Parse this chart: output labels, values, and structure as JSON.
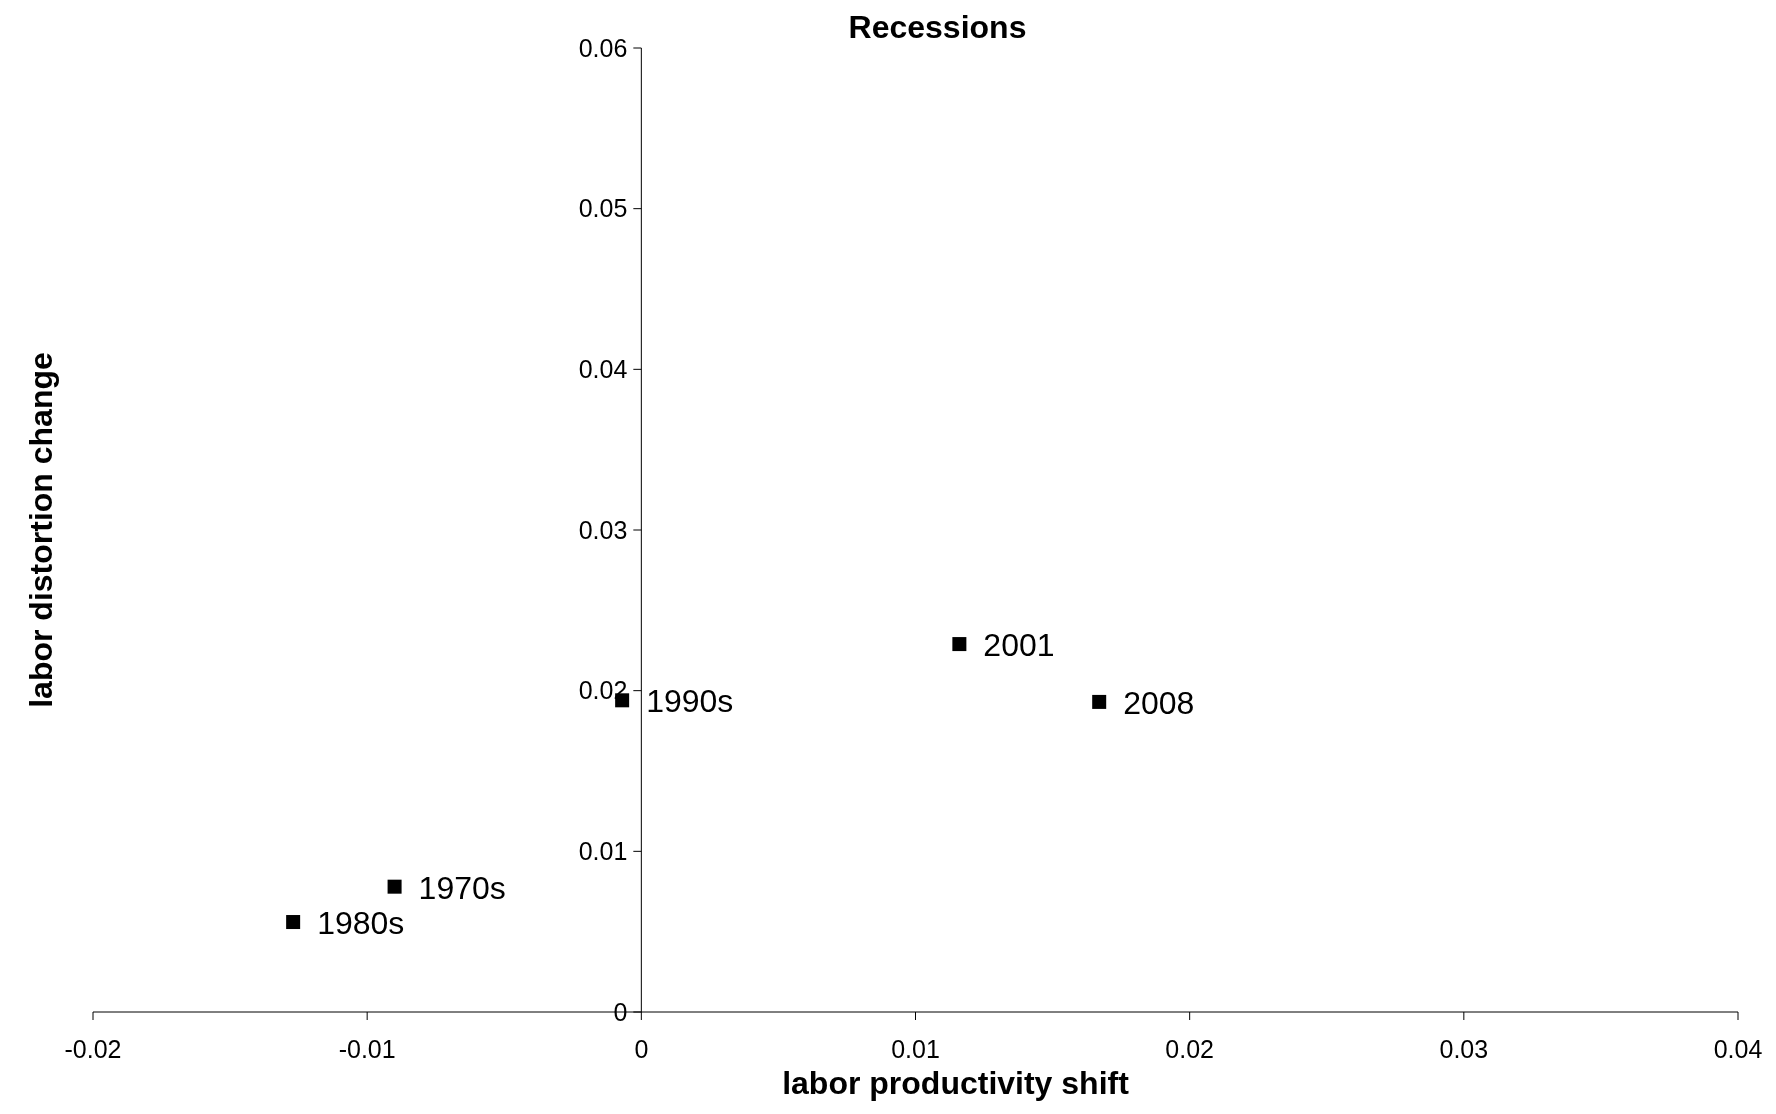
{
  "chart_data": {
    "type": "scatter",
    "title": "Recessions",
    "xlabel": "labor productivity shift",
    "ylabel": "labor distortion change",
    "xlim": [
      -0.02,
      0.04
    ],
    "xticks": [
      -0.02,
      -0.01,
      0,
      0.01,
      0.02,
      0.03,
      0.04
    ],
    "ylim": [
      0,
      0.06
    ],
    "yticks": [
      0,
      0.01,
      0.02,
      0.03,
      0.04,
      0.05,
      0.06
    ],
    "grid": false,
    "marker": "square",
    "annotations": [
      {
        "text": "1970s",
        "x": -0.009,
        "y": 0.0078
      },
      {
        "text": "1980s",
        "x": -0.0127,
        "y": 0.0056
      },
      {
        "text": "1990s",
        "x": -0.0007,
        "y": 0.0194
      },
      {
        "text": "2001",
        "x": 0.0116,
        "y": 0.0229
      },
      {
        "text": "2008",
        "x": 0.0167,
        "y": 0.0193
      }
    ],
    "series": [
      {
        "color": "#000000",
        "x": [
          -0.009,
          -0.0127,
          -0.0007,
          0.0116,
          0.0167
        ],
        "values": [
          0.0078,
          0.0056,
          0.0194,
          0.0229,
          0.0193
        ]
      }
    ]
  }
}
